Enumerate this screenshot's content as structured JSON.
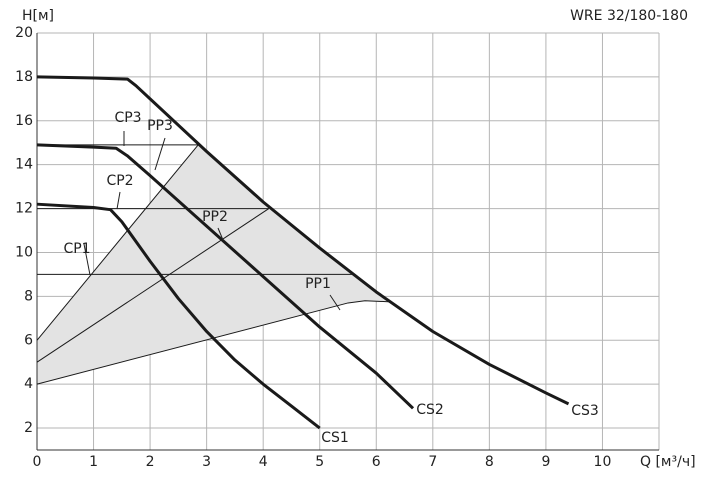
{
  "chart_data": {
    "type": "line",
    "title": "WRE 32/180-180",
    "y_label": "H[м]",
    "x_label": "Q [м³/ч]",
    "xlim": [
      0,
      11
    ],
    "ylim": [
      1,
      20
    ],
    "xticks": [
      0,
      1,
      2,
      3,
      4,
      5,
      6,
      7,
      8,
      9,
      10
    ],
    "yticks": [
      2,
      4,
      6,
      8,
      10,
      12,
      14,
      16,
      18,
      20
    ],
    "grid": true,
    "range_fill": "#e3e3e3",
    "series": [
      {
        "name": "CS1",
        "color": "#1a1a1a",
        "width": 3,
        "x": [
          0,
          1,
          1.3,
          1.5,
          2,
          2.5,
          3,
          3.5,
          4,
          4.5,
          5
        ],
        "values": [
          12.2,
          12.05,
          11.95,
          11.4,
          9.6,
          7.9,
          6.4,
          5.1,
          4,
          3,
          2
        ]
      },
      {
        "name": "CS2",
        "color": "#1a1a1a",
        "width": 3,
        "x": [
          0,
          1,
          1.4,
          1.6,
          2,
          3,
          4,
          5,
          6,
          6.65
        ],
        "values": [
          14.9,
          14.8,
          14.75,
          14.4,
          13.5,
          11.2,
          8.9,
          6.6,
          4.5,
          2.9
        ]
      },
      {
        "name": "CS3",
        "color": "#1a1a1a",
        "width": 3,
        "x": [
          0,
          1,
          1.6,
          1.75,
          2,
          3,
          4,
          5,
          6,
          7,
          8,
          9,
          9.4
        ],
        "values": [
          18,
          17.95,
          17.9,
          17.6,
          17,
          14.6,
          12.3,
          10.2,
          8.2,
          6.4,
          4.9,
          3.6,
          3.1
        ]
      },
      {
        "name": "CP1",
        "color": "#1a1a1a",
        "width": 1,
        "x": [
          0,
          5.6
        ],
        "values": [
          9,
          9
        ]
      },
      {
        "name": "CP2",
        "color": "#1a1a1a",
        "width": 1,
        "x": [
          0,
          4.1
        ],
        "values": [
          12,
          12
        ]
      },
      {
        "name": "CP3",
        "color": "#1a1a1a",
        "width": 1,
        "x": [
          0,
          2.85
        ],
        "values": [
          14.9,
          14.9
        ]
      },
      {
        "name": "PP1",
        "color": "#1a1a1a",
        "width": 1,
        "x": [
          0,
          5.5,
          5.8,
          6,
          6.25
        ],
        "values": [
          4,
          7.7,
          7.8,
          7.78,
          7.75
        ]
      },
      {
        "name": "PP2",
        "color": "#1a1a1a",
        "width": 1,
        "x": [
          0,
          4.1
        ],
        "values": [
          5,
          12
        ]
      },
      {
        "name": "PP3",
        "color": "#1a1a1a",
        "width": 1,
        "x": [
          0,
          2.85
        ],
        "values": [
          6,
          14.9
        ]
      }
    ]
  }
}
